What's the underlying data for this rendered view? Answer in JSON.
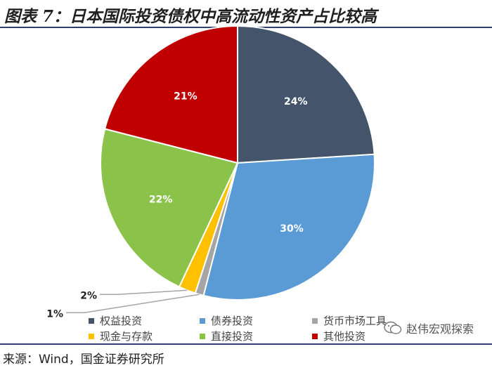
{
  "title": "图表 7：日本国际投资债权中高流动性资产占比较高",
  "source": "来源：Wind，国金证券研究所",
  "watermark": "赵伟宏观探索",
  "chart_data": {
    "type": "pie",
    "title": "",
    "slices": [
      {
        "name": "权益投资",
        "value": 24,
        "label": "24%",
        "color": "#44546a"
      },
      {
        "name": "债券投资",
        "value": 30,
        "label": "30%",
        "color": "#5b9bd5"
      },
      {
        "name": "货币市场工具",
        "value": 1,
        "label": "1%",
        "color": "#a5a5a5"
      },
      {
        "name": "现金与存款",
        "value": 2,
        "label": "2%",
        "color": "#ffc000"
      },
      {
        "name": "直接投资",
        "value": 22,
        "label": "22%",
        "color": "#8bc34a"
      },
      {
        "name": "其他投资",
        "value": 21,
        "label": "21%",
        "color": "#c00000"
      }
    ],
    "legend_position": "bottom"
  }
}
